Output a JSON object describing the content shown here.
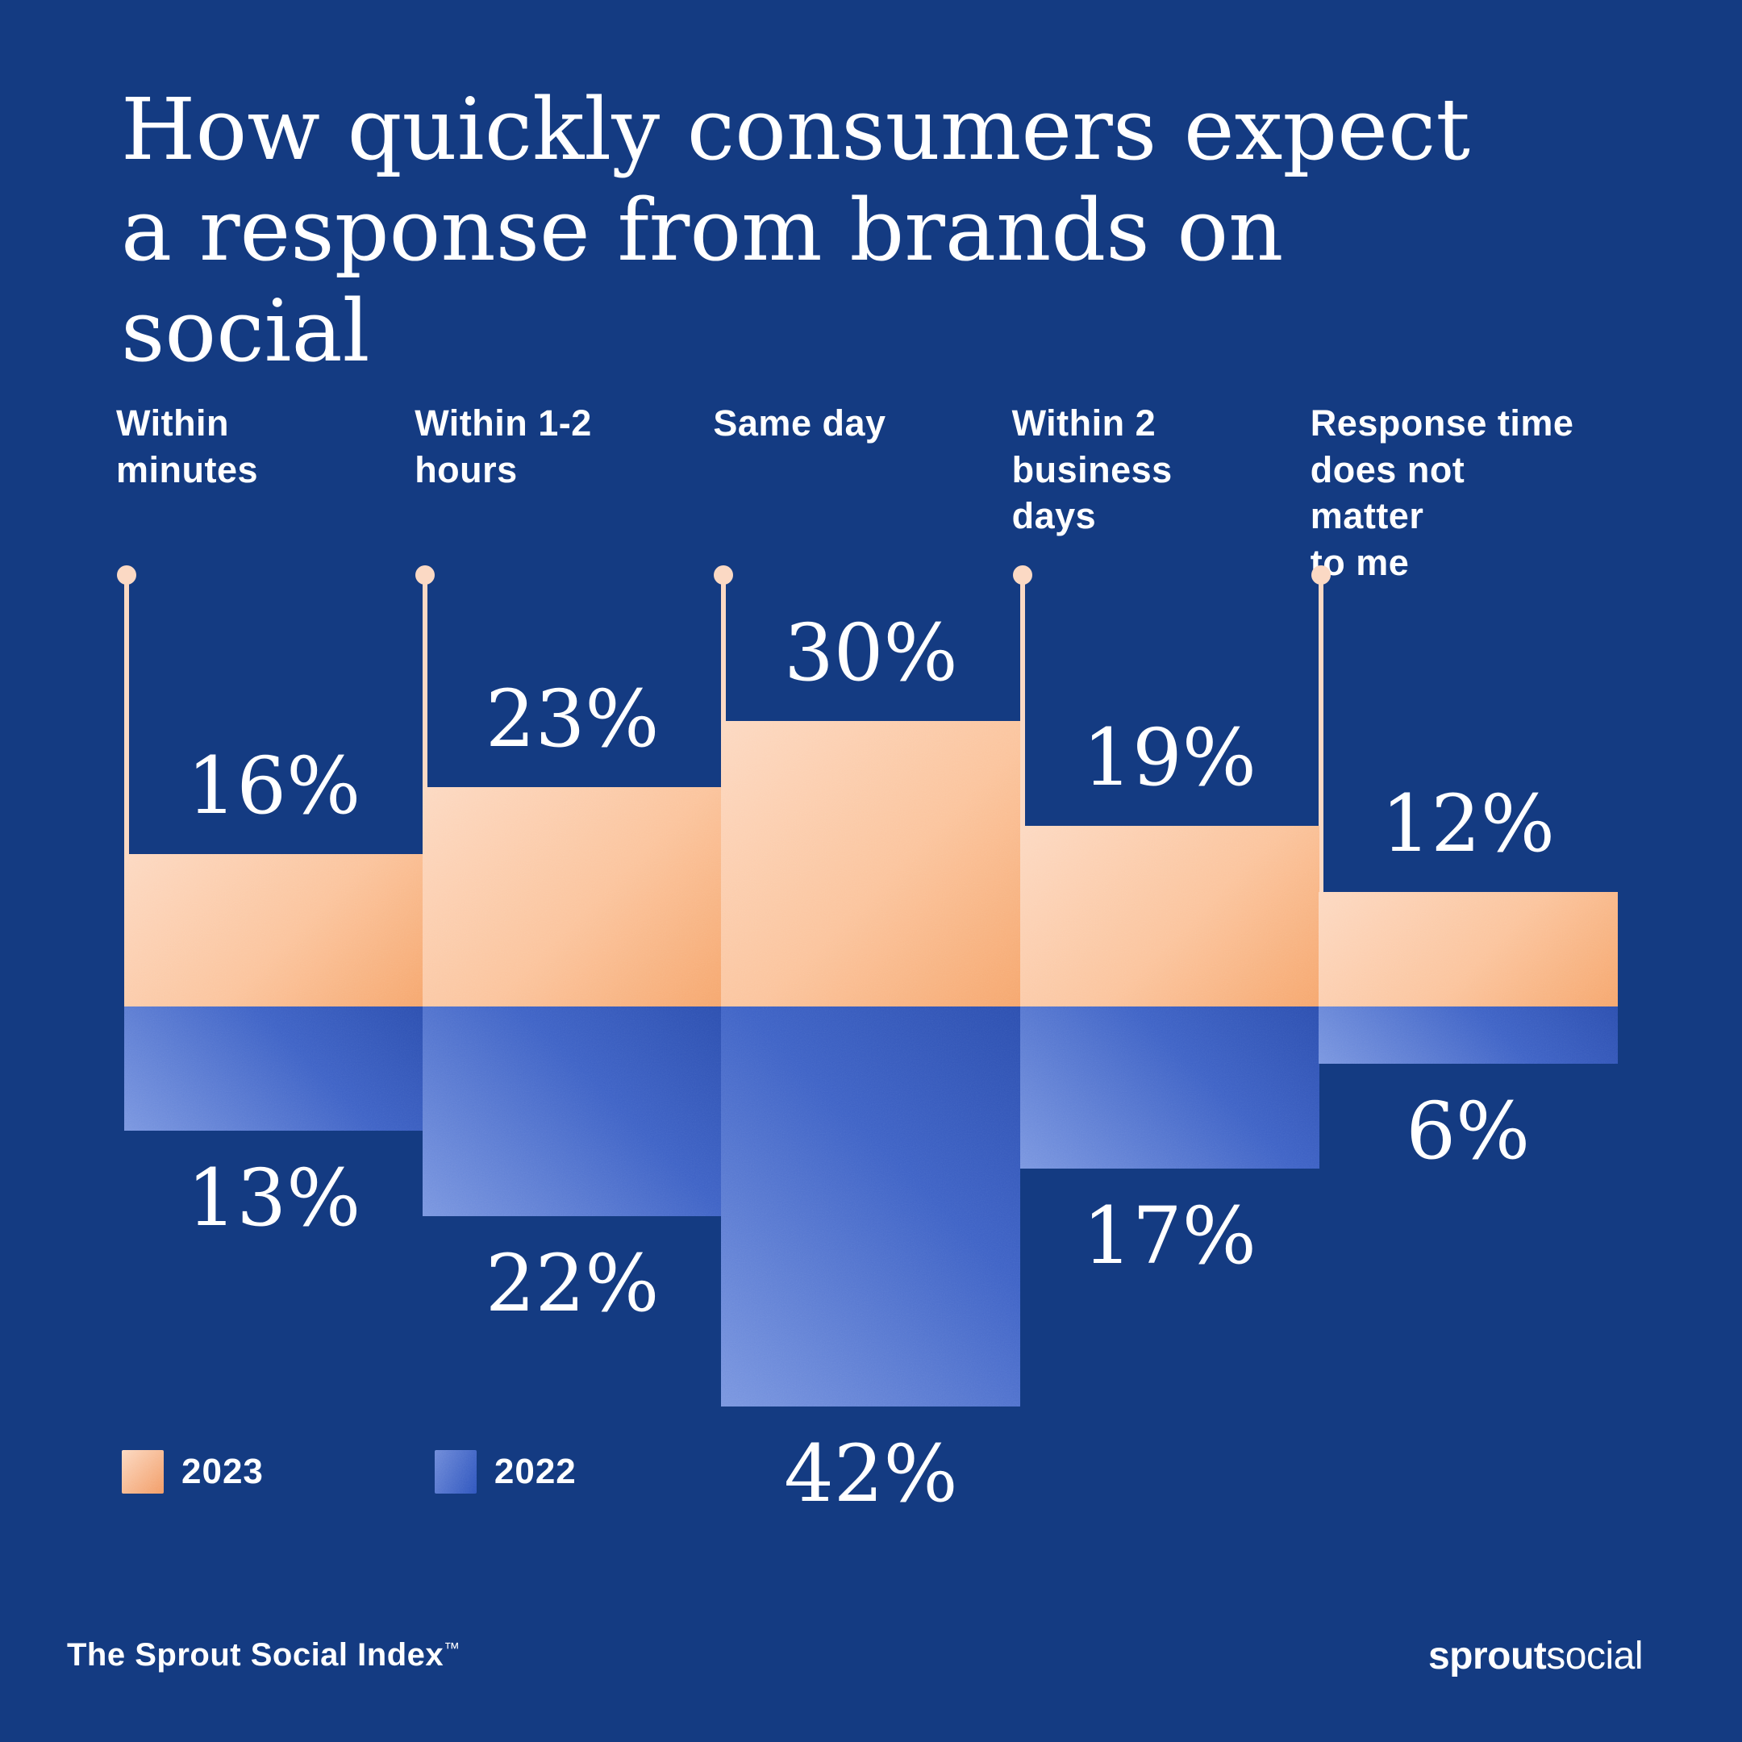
{
  "title": "How quickly consumers expect a response from brands on social",
  "colors": {
    "background": "#143b82",
    "text": "#ffffff",
    "stem_and_dot": "#fbd9c4",
    "orange_light": "#fcd9c2",
    "orange_dark": "#f6a76e",
    "blue_light": "#7b97e0",
    "blue_dark": "#2c4fb0"
  },
  "legend": {
    "items": [
      {
        "label": "2023",
        "color": "orange"
      },
      {
        "label": "2022",
        "color": "blue"
      }
    ]
  },
  "footer": {
    "source": "The Sprout Social Index",
    "trademark": "™",
    "logo_bold": "sprout",
    "logo_light": "social"
  },
  "chart_data": {
    "type": "bar",
    "orientation": "diverging-vertical",
    "title": "How quickly consumers expect a response from brands on social",
    "value_suffix": "%",
    "categories": [
      {
        "label": "Within minutes",
        "lines": [
          "Within",
          "minutes"
        ]
      },
      {
        "label": "Within 1-2 hours",
        "lines": [
          "Within 1-2",
          "hours"
        ]
      },
      {
        "label": "Same day",
        "lines": [
          "Same day"
        ]
      },
      {
        "label": "Within 2 business days",
        "lines": [
          "Within 2",
          "business",
          "days"
        ]
      },
      {
        "label": "Response time does not matter to me",
        "lines": [
          "Response time",
          "does not matter",
          "to me"
        ]
      }
    ],
    "series": [
      {
        "name": "2023",
        "direction": "up",
        "color": "orange",
        "values": [
          16,
          23,
          30,
          19,
          12
        ]
      },
      {
        "name": "2022",
        "direction": "down",
        "color": "blue",
        "values": [
          13,
          22,
          42,
          17,
          6
        ]
      }
    ],
    "legend_position": "bottom-left",
    "grid": false,
    "axis_labels_shown": false
  }
}
